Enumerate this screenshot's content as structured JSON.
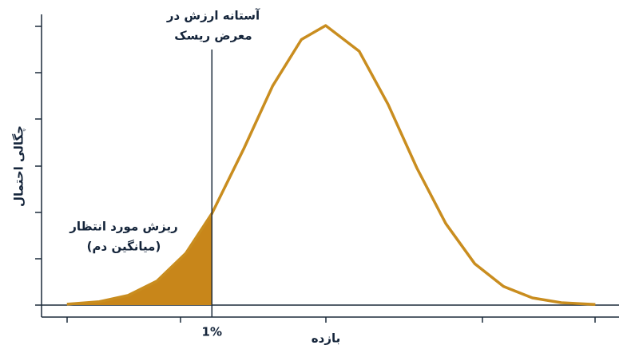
{
  "chart_data": {
    "type": "area",
    "x_label": "بازده",
    "y_label": "چگالی احتمال",
    "x": [
      4.4,
      10,
      15,
      20,
      25,
      29.5,
      35,
      40,
      45,
      49.2,
      55,
      60,
      65,
      70,
      75,
      80,
      85,
      90,
      95.9
    ],
    "series": [
      {
        "color": "#c98d1f",
        "values": [
          0.019,
          0.073,
          0.209,
          0.518,
          1.115,
          1.965,
          3.35,
          4.7,
          5.7,
          6,
          5.45,
          4.31,
          2.94,
          1.75,
          0.89,
          0.4,
          0.154,
          0.051,
          0.012
        ]
      }
    ],
    "tail_color": "#c8861a",
    "threshold": {
      "value": 29.5,
      "label": "1%"
    },
    "xlim": [
      0,
      100
    ],
    "ylim": [
      0,
      6
    ],
    "annotations": [
      {
        "lines": [
          "آستانه ارزش در",
          "معرض ریسک"
        ]
      },
      {
        "lines": [
          "ریزش مورد انتظار",
          "(میانگین دم)"
        ]
      }
    ]
  }
}
